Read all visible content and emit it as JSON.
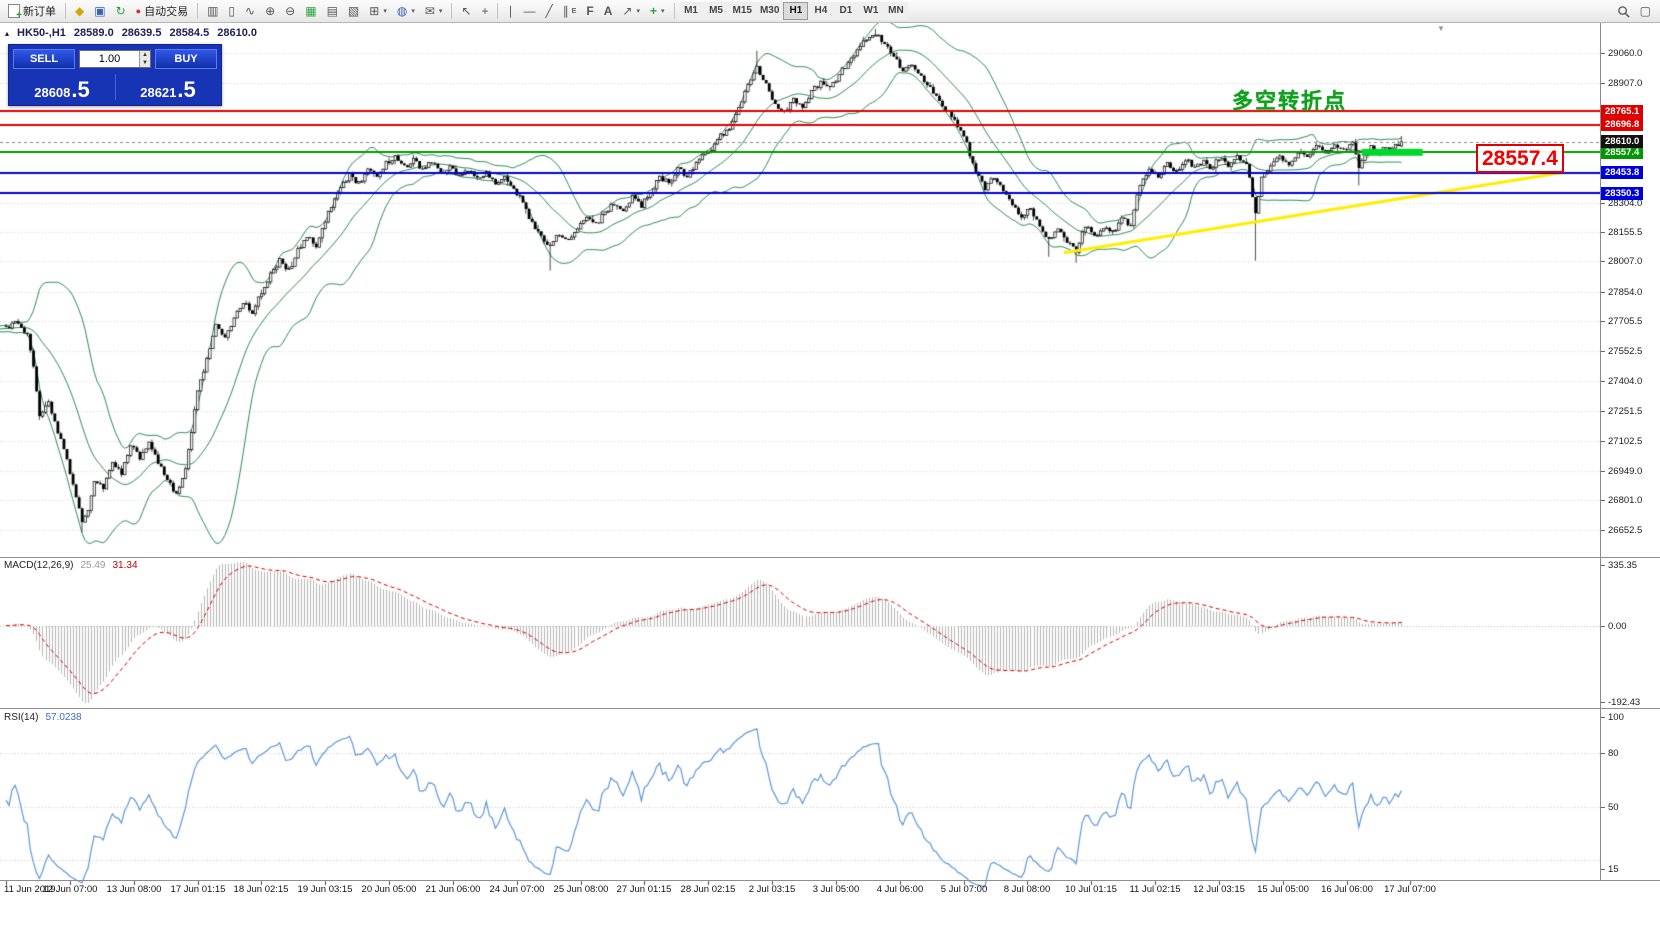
{
  "toolbar": {
    "new_order_label": "新订单",
    "auto_trading_label": "自动交易",
    "icons": {
      "charts_gold": "◆",
      "profile": "▣",
      "refresh": "↻",
      "auto_trading_dot": "●",
      "bar_chart": "▥",
      "candle_chart": "▯",
      "line_chart": "∿",
      "zoom_in": "⊕",
      "zoom_out": "⊖",
      "tile_windows": "▦",
      "arrange_a": "▤",
      "arrange_b": "▧",
      "new_chart": "⊞",
      "profiles": "◍",
      "mail": "✉",
      "cursor": "↖",
      "crosshair": "+",
      "vline": "∣",
      "hline": "―",
      "trendline": "╱",
      "channel": "∥",
      "channel_sub": "E",
      "fibonacci": "F",
      "text_tool": "A",
      "arrow_tool": "↗",
      "indicators": "+",
      "layout": "▢",
      "caret": "▾",
      "shift_marker": "▼",
      "panel_toggle": "▴"
    },
    "timeframes": [
      "M1",
      "M5",
      "M15",
      "M30",
      "H1",
      "H4",
      "D1",
      "W1",
      "MN"
    ],
    "active_timeframe": "H1"
  },
  "symbol_info": {
    "symbol": "HK50-,H1",
    "open": "28589.0",
    "high": "28639.5",
    "low": "28584.5",
    "close": "28610.0"
  },
  "trade_panel": {
    "sell_label": "SELL",
    "buy_label": "BUY",
    "volume": "1.00",
    "sell_price": "28608",
    "sell_price_frac": ".5",
    "buy_price": "28621",
    "buy_price_frac": ".5"
  },
  "annotations": {
    "turning_point_text": "多空转折点",
    "price_callout": "28557.4"
  },
  "price_scale": {
    "ticks": [
      "29060.0",
      "28907.0",
      "28304.0",
      "28155.5",
      "28007.0",
      "27854.0",
      "27705.5",
      "27552.5",
      "27404.0",
      "27251.5",
      "27102.5",
      "26949.0",
      "26801.0",
      "26652.5"
    ]
  },
  "macd_panel": {
    "name": "MACD(12,26,9)",
    "macd_value": "25.49",
    "signal_value": "31.34",
    "scale_top": "335.35",
    "scale_zero": "0.00",
    "scale_bottom": "-192.43"
  },
  "rsi_panel": {
    "name": "RSI(14)",
    "value": "57.0238",
    "scale": {
      "top": "100",
      "level1": "80",
      "level2": "50",
      "bottom": "15"
    }
  },
  "time_axis": {
    "labels": [
      "11 Jun 2019",
      "12 Jun 07:00",
      "13 Jun 08:00",
      "17 Jun 01:15",
      "18 Jun 02:15",
      "19 Jun 03:15",
      "20 Jun 05:00",
      "21 Jun 06:00",
      "24 Jun 07:00",
      "25 Jun 08:00",
      "27 Jun 01:15",
      "28 Jun 02:15",
      "2 Jul 03:15",
      "3 Jul 05:00",
      "4 Jul 06:00",
      "5 Jul 07:00",
      "8 Jul 08:00",
      "10 Jul 01:15",
      "11 Jul 02:15",
      "12 Jul 03:15",
      "15 Jul 05:00",
      "16 Jul 06:00",
      "17 Jul 07:00"
    ]
  },
  "chart_data": {
    "type": "candlestick",
    "symbol": "HK50-",
    "timeframe": "H1",
    "candle_count": 460,
    "price_range": [
      26520,
      29210
    ],
    "noise_seed": 12,
    "noise_amp": 13,
    "keypoints": [
      [
        0,
        27670
      ],
      [
        4,
        27700
      ],
      [
        7,
        27640
      ],
      [
        9,
        27480
      ],
      [
        11,
        27230
      ],
      [
        14,
        27300
      ],
      [
        17,
        27150
      ],
      [
        20,
        27000
      ],
      [
        23,
        26820
      ],
      [
        25,
        26680
      ],
      [
        27,
        26740
      ],
      [
        29,
        26900
      ],
      [
        32,
        26860
      ],
      [
        35,
        26990
      ],
      [
        38,
        26930
      ],
      [
        41,
        27080
      ],
      [
        44,
        27020
      ],
      [
        47,
        27100
      ],
      [
        50,
        26990
      ],
      [
        53,
        26900
      ],
      [
        56,
        26830
      ],
      [
        59,
        26960
      ],
      [
        61,
        27150
      ],
      [
        63,
        27340
      ],
      [
        66,
        27520
      ],
      [
        69,
        27680
      ],
      [
        72,
        27630
      ],
      [
        75,
        27720
      ],
      [
        78,
        27800
      ],
      [
        81,
        27750
      ],
      [
        84,
        27850
      ],
      [
        87,
        27940
      ],
      [
        90,
        28010
      ],
      [
        93,
        27960
      ],
      [
        96,
        28060
      ],
      [
        99,
        28130
      ],
      [
        102,
        28090
      ],
      [
        104,
        28180
      ],
      [
        107,
        28290
      ],
      [
        110,
        28380
      ],
      [
        113,
        28440
      ],
      [
        116,
        28400
      ],
      [
        119,
        28470
      ],
      [
        122,
        28430
      ],
      [
        125,
        28500
      ],
      [
        128,
        28540
      ],
      [
        131,
        28480
      ],
      [
        134,
        28520
      ],
      [
        137,
        28470
      ],
      [
        140,
        28510
      ],
      [
        143,
        28450
      ],
      [
        146,
        28480
      ],
      [
        149,
        28430
      ],
      [
        152,
        28470
      ],
      [
        155,
        28420
      ],
      [
        158,
        28450
      ],
      [
        161,
        28400
      ],
      [
        164,
        28430
      ],
      [
        167,
        28380
      ],
      [
        170,
        28300
      ],
      [
        173,
        28200
      ],
      [
        176,
        28130
      ],
      [
        179,
        28080
      ],
      [
        182,
        28150
      ],
      [
        185,
        28110
      ],
      [
        188,
        28170
      ],
      [
        191,
        28230
      ],
      [
        194,
        28190
      ],
      [
        197,
        28260
      ],
      [
        200,
        28300
      ],
      [
        203,
        28270
      ],
      [
        206,
        28330
      ],
      [
        209,
        28290
      ],
      [
        212,
        28360
      ],
      [
        215,
        28430
      ],
      [
        218,
        28400
      ],
      [
        221,
        28470
      ],
      [
        224,
        28440
      ],
      [
        227,
        28500
      ],
      [
        229,
        28540
      ],
      [
        232,
        28580
      ],
      [
        235,
        28640
      ],
      [
        238,
        28680
      ],
      [
        241,
        28780
      ],
      [
        244,
        28900
      ],
      [
        247,
        28990
      ],
      [
        250,
        28900
      ],
      [
        253,
        28800
      ],
      [
        256,
        28760
      ],
      [
        259,
        28830
      ],
      [
        262,
        28790
      ],
      [
        265,
        28860
      ],
      [
        268,
        28910
      ],
      [
        271,
        28880
      ],
      [
        274,
        28950
      ],
      [
        277,
        29010
      ],
      [
        280,
        29080
      ],
      [
        283,
        29130
      ],
      [
        286,
        29160
      ],
      [
        289,
        29100
      ],
      [
        292,
        29040
      ],
      [
        295,
        28970
      ],
      [
        298,
        29010
      ],
      [
        301,
        28940
      ],
      [
        304,
        28880
      ],
      [
        307,
        28820
      ],
      [
        310,
        28750
      ],
      [
        313,
        28690
      ],
      [
        316,
        28600
      ],
      [
        319,
        28450
      ],
      [
        322,
        28380
      ],
      [
        325,
        28430
      ],
      [
        328,
        28370
      ],
      [
        331,
        28290
      ],
      [
        334,
        28230
      ],
      [
        337,
        28280
      ],
      [
        340,
        28180
      ],
      [
        343,
        28120
      ],
      [
        346,
        28170
      ],
      [
        349,
        28110
      ],
      [
        352,
        28060
      ],
      [
        355,
        28190
      ],
      [
        358,
        28130
      ],
      [
        361,
        28180
      ],
      [
        364,
        28150
      ],
      [
        367,
        28220
      ],
      [
        370,
        28190
      ],
      [
        373,
        28400
      ],
      [
        376,
        28470
      ],
      [
        379,
        28430
      ],
      [
        382,
        28500
      ],
      [
        385,
        28460
      ],
      [
        388,
        28520
      ],
      [
        391,
        28480
      ],
      [
        394,
        28510
      ],
      [
        396,
        28470
      ],
      [
        399,
        28530
      ],
      [
        402,
        28490
      ],
      [
        405,
        28540
      ],
      [
        408,
        28500
      ],
      [
        411,
        28260
      ],
      [
        413,
        28430
      ],
      [
        416,
        28490
      ],
      [
        419,
        28540
      ],
      [
        422,
        28500
      ],
      [
        425,
        28560
      ],
      [
        428,
        28530
      ],
      [
        431,
        28590
      ],
      [
        434,
        28550
      ],
      [
        437,
        28600
      ],
      [
        440,
        28570
      ],
      [
        443,
        28610
      ],
      [
        445,
        28480
      ],
      [
        447,
        28540
      ],
      [
        449,
        28580
      ],
      [
        451,
        28550
      ],
      [
        453,
        28590
      ],
      [
        455,
        28570
      ],
      [
        457,
        28600
      ],
      [
        459,
        28610
      ]
    ],
    "wick_overrides": {
      "25": {
        "low": 26640
      },
      "179": {
        "low": 27960
      },
      "247": {
        "high": 29070
      },
      "286": {
        "high": 29180
      },
      "343": {
        "low": 28030
      },
      "352": {
        "low": 28000
      },
      "411": {
        "low": 28010
      },
      "445": {
        "low": 28390
      }
    },
    "last_candle": {
      "open": 28589.0,
      "high": 28639.5,
      "low": 28584.5,
      "close": 28610.0
    },
    "last_price": {
      "value": 28610.0,
      "label": "28610.0"
    },
    "hlines": [
      {
        "price": 28765.1,
        "color": "#e00000",
        "width": 2,
        "label": "28765.1"
      },
      {
        "price": 28696.8,
        "color": "#e00000",
        "width": 2,
        "label": "28696.8"
      },
      {
        "price": 28557.4,
        "color": "#009a00",
        "width": 2,
        "label": "28557.4"
      },
      {
        "price": 28453.8,
        "color": "#0000dd",
        "width": 2,
        "label": "28453.8"
      },
      {
        "price": 28350.3,
        "color": "#0000dd",
        "width": 2,
        "label": "28350.3"
      }
    ],
    "trendline": {
      "color": "#ffee00",
      "width": 3,
      "x1_idx": 348,
      "price1": 28050,
      "x2_idx": 512,
      "price2": 28455
    },
    "highlight": {
      "color": "#00d72b",
      "from_idx": 446,
      "to_idx": 466,
      "price": 28557.4,
      "thickness": 7
    },
    "bollinger": {
      "period": 20,
      "deviation": 2,
      "color": "#2e8b57"
    },
    "macd": {
      "fast": 12,
      "slow": 26,
      "signal": 9,
      "histogram_color": "#b6b6b6",
      "signal_color": "#d40000"
    },
    "rsi": {
      "period": 14,
      "color": "#5e97d8",
      "levels": [
        80,
        50,
        20
      ],
      "view_range": [
        10,
        103
      ]
    }
  }
}
